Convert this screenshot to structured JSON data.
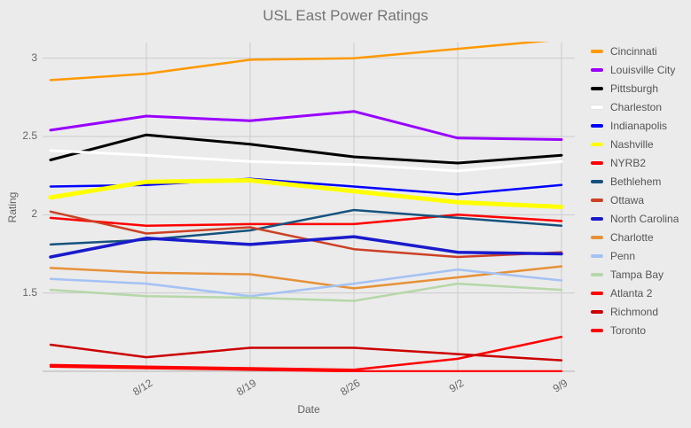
{
  "page": {
    "background": "#ebebeb"
  },
  "chart_data": {
    "type": "line",
    "title": "USL East Power Ratings",
    "xlabel": "Date",
    "ylabel": "Rating",
    "x_tick_labels": [
      "8/12",
      "8/19",
      "8/26",
      "9/2",
      "9/9"
    ],
    "y_tick_labels": [
      "3",
      "2.5",
      "2",
      "1.5"
    ],
    "yticks": [
      3,
      2.5,
      2,
      1.5
    ],
    "ylim": [
      1.0,
      3.1
    ],
    "points_per_series": 6,
    "grid": true,
    "legend_position": "right",
    "series": [
      {
        "name": "Cincinnati",
        "color": "#ff9900",
        "width": 2.5,
        "values": [
          2.86,
          2.9,
          2.99,
          3.0,
          3.06,
          3.12
        ]
      },
      {
        "name": "Louisville City",
        "color": "#9900ff",
        "width": 3,
        "values": [
          2.54,
          2.63,
          2.6,
          2.66,
          2.49,
          2.48
        ]
      },
      {
        "name": "Pittsburgh",
        "color": "#000000",
        "width": 3,
        "values": [
          2.35,
          2.51,
          2.45,
          2.37,
          2.33,
          2.38
        ]
      },
      {
        "name": "Charleston",
        "color": "#ffffff",
        "width": 3,
        "values": [
          2.41,
          2.38,
          2.34,
          2.32,
          2.28,
          2.34
        ]
      },
      {
        "name": "Indianapolis",
        "color": "#0000ff",
        "width": 2.5,
        "values": [
          2.18,
          2.19,
          2.23,
          2.18,
          2.13,
          2.19
        ]
      },
      {
        "name": "Nashville",
        "color": "#ffff00",
        "width": 5,
        "values": [
          2.11,
          2.21,
          2.22,
          2.15,
          2.08,
          2.05
        ]
      },
      {
        "name": "NYRB2",
        "color": "#ff0000",
        "width": 2.5,
        "values": [
          1.98,
          1.93,
          1.94,
          1.94,
          2.0,
          1.96
        ]
      },
      {
        "name": "Bethlehem",
        "color": "#16537e",
        "width": 2.5,
        "values": [
          1.81,
          1.84,
          1.9,
          2.03,
          1.98,
          1.93
        ]
      },
      {
        "name": "Ottawa",
        "color": "#cc4125",
        "width": 2.5,
        "values": [
          2.02,
          1.88,
          1.92,
          1.78,
          1.73,
          1.76
        ]
      },
      {
        "name": "North Carolina",
        "color": "#1a1acc",
        "width": 3.5,
        "values": [
          1.73,
          1.85,
          1.81,
          1.86,
          1.76,
          1.75
        ]
      },
      {
        "name": "Charlotte",
        "color": "#e69138",
        "width": 2.5,
        "values": [
          1.66,
          1.63,
          1.62,
          1.53,
          1.6,
          1.67
        ]
      },
      {
        "name": "Penn",
        "color": "#a4c2f4",
        "width": 2.5,
        "values": [
          1.59,
          1.56,
          1.48,
          1.56,
          1.65,
          1.58
        ]
      },
      {
        "name": "Tampa Bay",
        "color": "#b6d7a8",
        "width": 2.5,
        "values": [
          1.52,
          1.48,
          1.47,
          1.45,
          1.56,
          1.52
        ]
      },
      {
        "name": "Atlanta 2",
        "color": "#ff0000",
        "width": 2.5,
        "values": [
          1.04,
          1.03,
          1.02,
          1.01,
          1.08,
          1.22
        ]
      },
      {
        "name": "Richmond",
        "color": "#cc0000",
        "width": 2.5,
        "values": [
          1.17,
          1.09,
          1.15,
          1.15,
          1.11,
          1.07
        ]
      },
      {
        "name": "Toronto",
        "color": "#ff0000",
        "width": 2.5,
        "values": [
          1.03,
          1.02,
          1.01,
          1.0,
          1.0,
          1.0
        ]
      }
    ]
  }
}
